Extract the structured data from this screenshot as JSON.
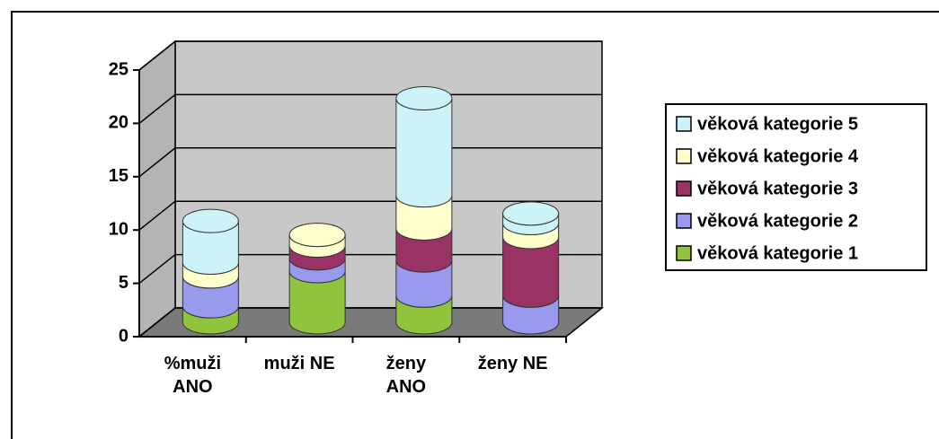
{
  "chart_data": {
    "type": "bar3d_stacked_cylinder",
    "categories": [
      "%muži\nANO",
      "muži NE",
      "ženy\nANO",
      "ženy NE"
    ],
    "series": [
      {
        "name": "věková kategorie 1",
        "color": "#8fc43c",
        "values": [
          1.5,
          4.8,
          2.5,
          0
        ]
      },
      {
        "name": "věková kategorie 2",
        "color": "#9999ee",
        "values": [
          2.8,
          1.2,
          3.3,
          2.5
        ]
      },
      {
        "name": "věková kategorie 3",
        "color": "#993366",
        "values": [
          0,
          1.2,
          3,
          5.5
        ]
      },
      {
        "name": "věková kategorie 4",
        "color": "#ffffcc",
        "values": [
          1.3,
          1.0,
          3.1,
          1.3
        ]
      },
      {
        "name": "věková kategorie 5",
        "color": "#ccf4f8",
        "values": [
          3.9,
          0,
          9.1,
          0.9
        ]
      }
    ],
    "ylim": [
      0,
      25
    ],
    "yticks": [
      0,
      5,
      10,
      15,
      20,
      25
    ],
    "grid": true,
    "legend": "right"
  }
}
